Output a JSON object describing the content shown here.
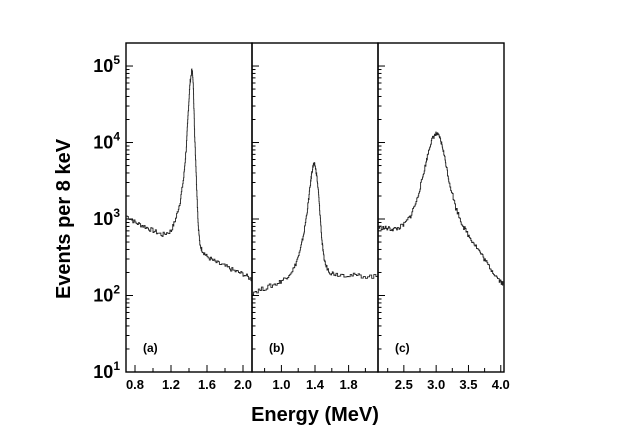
{
  "chart_data": {
    "type": "line",
    "ylabel": "Events per 8 keV",
    "xlabel": "Energy (MeV)",
    "yscale": "log",
    "ylim": [
      10,
      200000
    ],
    "y_ticks": [
      {
        "value": 10,
        "base": "10",
        "exp": "1"
      },
      {
        "value": 100,
        "base": "10",
        "exp": "2"
      },
      {
        "value": 1000,
        "base": "10",
        "exp": "3"
      },
      {
        "value": 10000,
        "base": "10",
        "exp": "4"
      },
      {
        "value": 100000,
        "base": "10",
        "exp": "5"
      }
    ],
    "panels": [
      {
        "label": "(a)",
        "xlim": [
          0.7,
          2.1
        ],
        "x_ticks": [
          0.8,
          1.2,
          1.6,
          2.0
        ],
        "x_tick_labels": [
          "0.8",
          "1.2",
          "1.6",
          "2.0"
        ],
        "series": {
          "name": "(a)",
          "x": [
            0.7,
            0.8,
            0.9,
            1.0,
            1.1,
            1.2,
            1.25,
            1.3,
            1.34,
            1.37,
            1.39,
            1.41,
            1.43,
            1.44,
            1.45,
            1.46,
            1.48,
            1.5,
            1.52,
            1.55,
            1.6,
            1.7,
            1.8,
            1.9,
            2.0,
            2.1
          ],
          "y": [
            1100,
            900,
            800,
            700,
            620,
            700,
            1000,
            1700,
            3500,
            9000,
            25000,
            60000,
            88000,
            80000,
            45000,
            15000,
            3500,
            900,
            450,
            380,
            320,
            270,
            240,
            210,
            190,
            160
          ]
        }
      },
      {
        "label": "(b)",
        "xlim": [
          0.65,
          2.15
        ],
        "x_ticks": [
          1.0,
          1.4,
          1.8
        ],
        "x_tick_labels": [
          "1.0",
          "1.4",
          "1.8"
        ],
        "series": {
          "name": "(b)",
          "x": [
            0.65,
            0.8,
            0.95,
            1.05,
            1.15,
            1.22,
            1.27,
            1.31,
            1.34,
            1.36,
            1.38,
            1.4,
            1.42,
            1.44,
            1.46,
            1.48,
            1.5,
            1.53,
            1.58,
            1.65,
            1.8,
            1.95,
            2.15
          ],
          "y": [
            110,
            125,
            145,
            170,
            230,
            380,
            700,
            1400,
            2600,
            4000,
            5200,
            5000,
            3700,
            2200,
            1100,
            550,
            330,
            240,
            200,
            190,
            185,
            180,
            175
          ]
        }
      },
      {
        "label": "(c)",
        "xlim": [
          2.1,
          4.05
        ],
        "x_ticks": [
          2.5,
          3.0,
          3.5,
          4.0
        ],
        "x_tick_labels": [
          "2.5",
          "3.0",
          "3.5",
          "4.0"
        ],
        "series": {
          "name": "(c)",
          "x": [
            2.1,
            2.2,
            2.3,
            2.4,
            2.5,
            2.6,
            2.7,
            2.78,
            2.85,
            2.9,
            2.95,
            3.0,
            3.05,
            3.1,
            3.15,
            3.2,
            3.3,
            3.4,
            3.5,
            3.6,
            3.7,
            3.8,
            3.9,
            4.0,
            4.05
          ],
          "y": [
            780,
            760,
            740,
            750,
            850,
            1100,
            1800,
            3300,
            6000,
            9000,
            11800,
            13000,
            11800,
            8500,
            5200,
            3000,
            1400,
            850,
            600,
            460,
            340,
            250,
            190,
            150,
            140
          ]
        }
      }
    ]
  }
}
